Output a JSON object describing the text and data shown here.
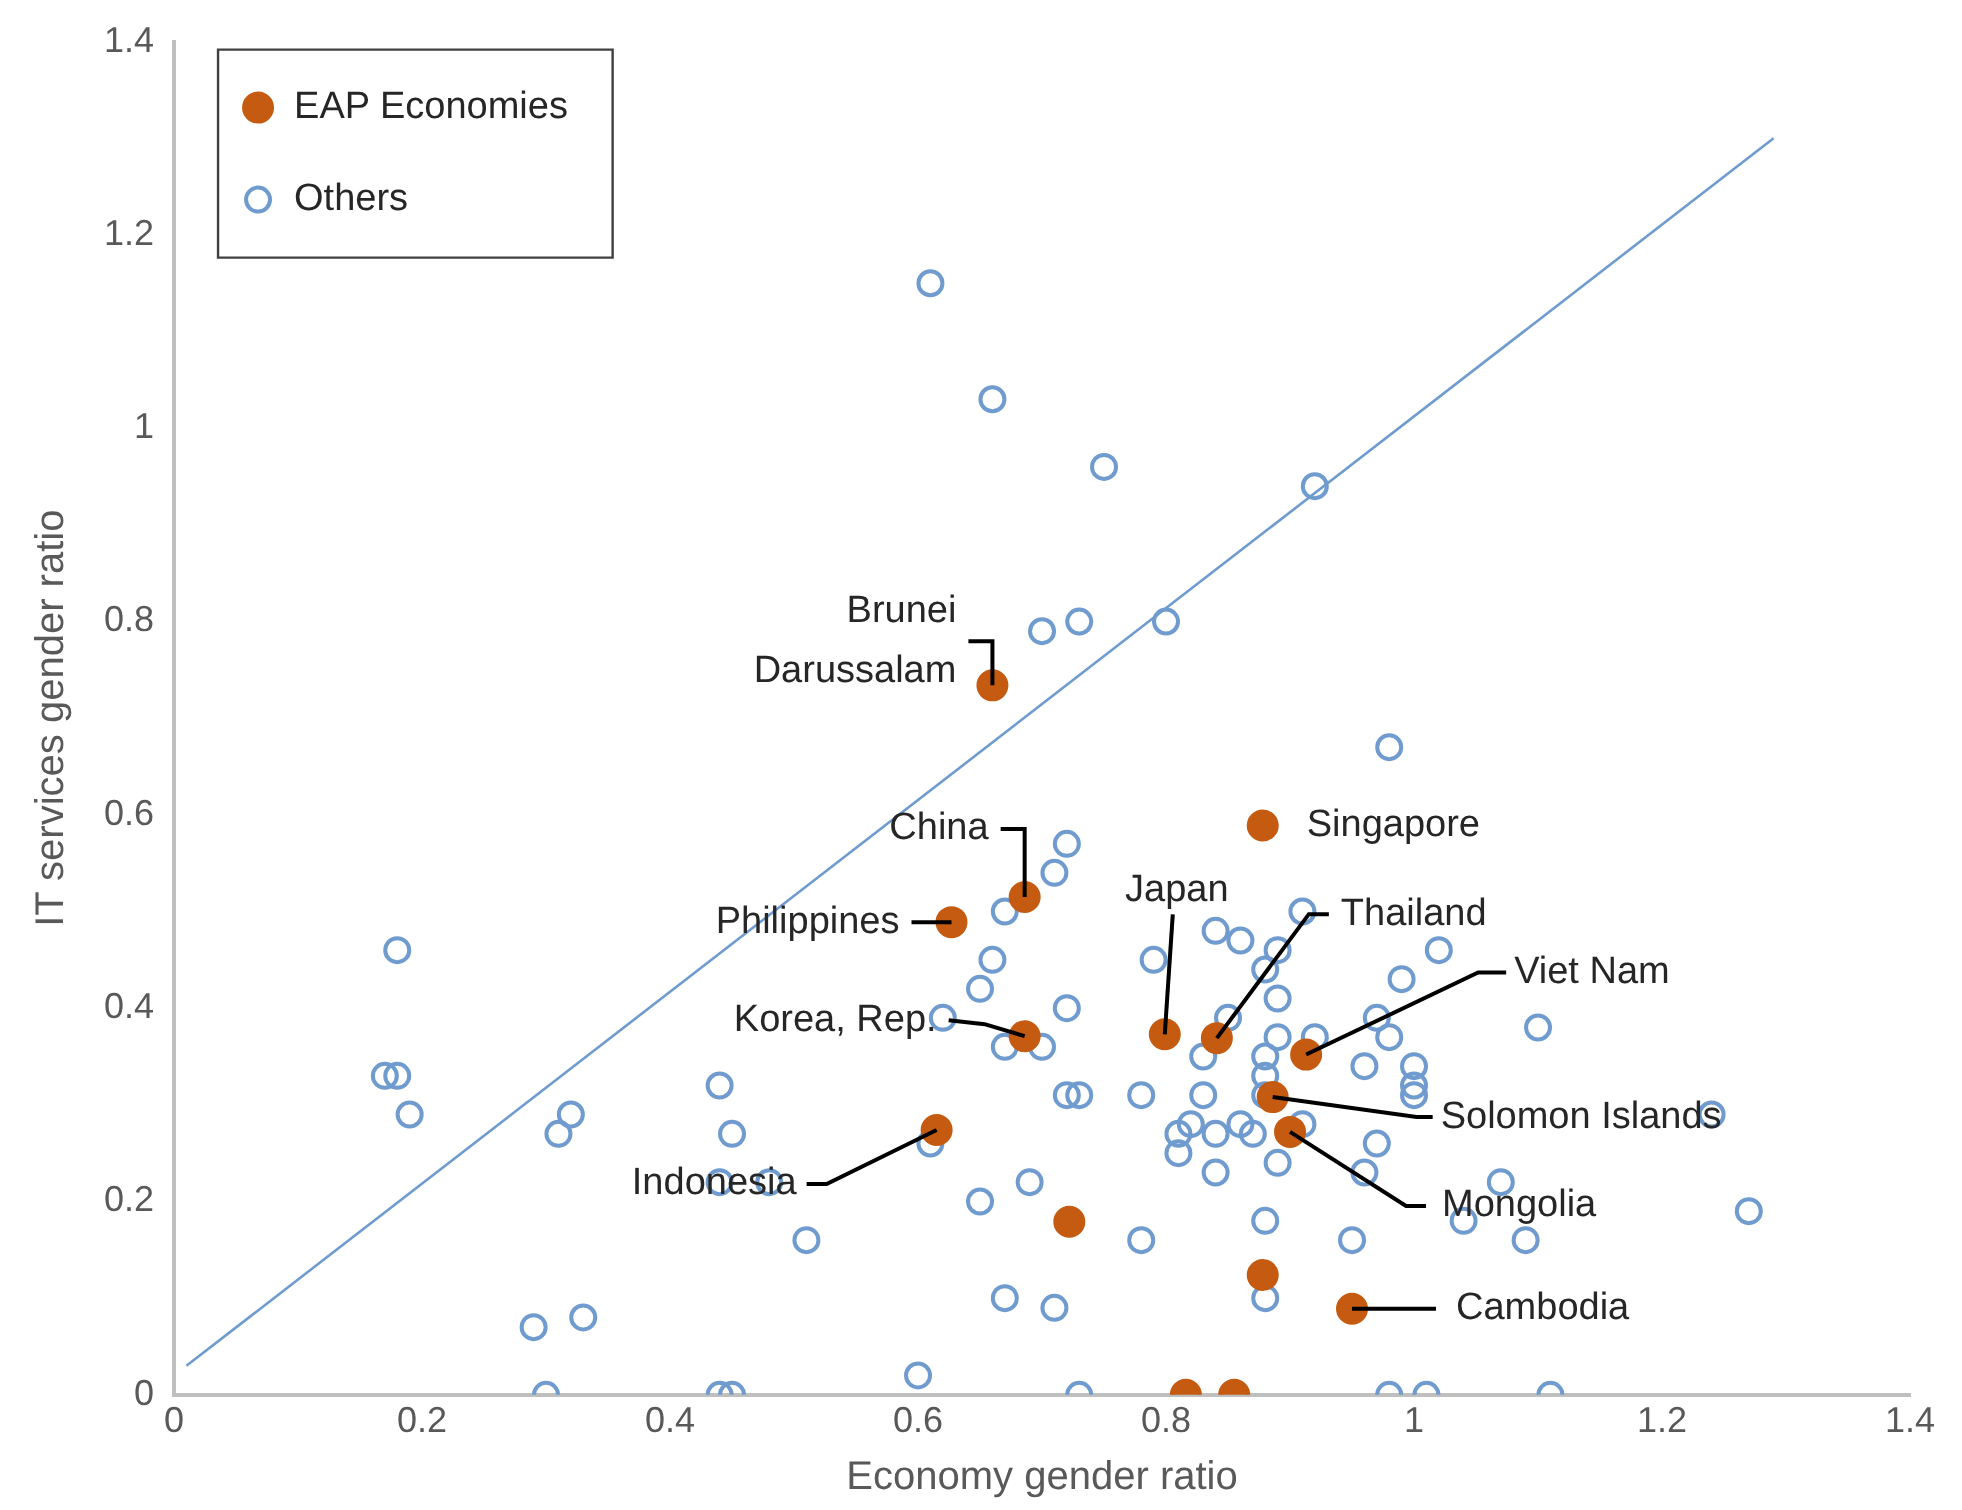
{
  "chart_data": {
    "type": "scatter",
    "xlabel": "Economy gender ratio",
    "ylabel": "IT services gender ratio",
    "xlim": [
      0,
      1.4
    ],
    "xticks": [
      0,
      0.2,
      0.4,
      0.6,
      0.8,
      1,
      1.2,
      1.4
    ],
    "ylim": [
      0,
      1.4
    ],
    "yticks": [
      0,
      0.2,
      0.4,
      0.6,
      0.8,
      1,
      1.2,
      1.4
    ],
    "grid": false,
    "legend": "top left",
    "marker": "circle",
    "series": [
      {
        "name": "EAP Economies",
        "color": "#c55a11",
        "x": [
          0.66,
          0.686,
          0.627,
          0.686,
          0.615,
          0.878,
          0.799,
          0.841,
          0.913,
          0.886,
          0.9,
          0.95,
          0.722,
          0.878,
          0.816,
          0.855
        ],
        "values": [
          0.734,
          0.515,
          0.489,
          0.371,
          0.274,
          0.589,
          0.373,
          0.369,
          0.352,
          0.308,
          0.272,
          0.089,
          0.179,
          0.124,
          0,
          0
        ]
      },
      {
        "name": "Others",
        "color": "#6f9bcf",
        "x": [
          0.61,
          0.66,
          0.75,
          0.92,
          0.7,
          0.73,
          0.8,
          0.98,
          0.18,
          0.17,
          0.18,
          0.19,
          0.31,
          0.32,
          0.33,
          0.29,
          0.3,
          0.44,
          0.45,
          0.44,
          0.45,
          0.44,
          0.48,
          0.51,
          0.6,
          0.72,
          0.71,
          0.67,
          0.66,
          0.65,
          0.72,
          0.62,
          0.67,
          0.7,
          0.72,
          0.73,
          0.61,
          0.78,
          0.65,
          0.69,
          0.78,
          0.67,
          0.71,
          0.73,
          0.79,
          0.84,
          0.86,
          0.91,
          0.89,
          0.88,
          0.89,
          0.85,
          1.02,
          0.99,
          0.97,
          0.98,
          0.89,
          0.88,
          0.83,
          0.92,
          0.96,
          1.0,
          1.0,
          1.0,
          0.88,
          0.83,
          0.88,
          0.81,
          0.82,
          0.84,
          0.86,
          0.87,
          0.81,
          0.84,
          0.89,
          0.91,
          0.97,
          0.96,
          0.88,
          0.95,
          0.88,
          0.98,
          1.01,
          1.1,
          1.24,
          1.27,
          1.07,
          1.09,
          1.04,
          1.11
        ],
        "values": [
          1.15,
          1.03,
          0.96,
          0.94,
          0.79,
          0.8,
          0.8,
          0.67,
          0.46,
          0.33,
          0.33,
          0.29,
          0.27,
          0.29,
          0.08,
          0.07,
          0,
          0.32,
          0.27,
          0,
          0,
          0.22,
          0.22,
          0.16,
          0.02,
          0.57,
          0.54,
          0.5,
          0.45,
          0.42,
          0.4,
          0.39,
          0.36,
          0.36,
          0.31,
          0.31,
          0.26,
          0.31,
          0.2,
          0.22,
          0.16,
          0.1,
          0.09,
          0,
          0.45,
          0.48,
          0.47,
          0.5,
          0.46,
          0.44,
          0.41,
          0.39,
          0.46,
          0.43,
          0.39,
          0.37,
          0.37,
          0.35,
          0.35,
          0.37,
          0.34,
          0.34,
          0.32,
          0.31,
          0.33,
          0.31,
          0.31,
          0.27,
          0.28,
          0.27,
          0.28,
          0.27,
          0.25,
          0.23,
          0.24,
          0.28,
          0.26,
          0.23,
          0.18,
          0.16,
          0.1,
          0,
          0,
          0.38,
          0.29,
          0.19,
          0.22,
          0.16,
          0.18,
          0
        ]
      },
      {
        "type": "line",
        "marker": "none",
        "color": "#6f9bcf",
        "x": [
          0.01,
          1.29
        ],
        "values": [
          0.03,
          1.3
        ]
      }
    ],
    "annotations": [
      {
        "text": "Brunei Darussalam",
        "x": 0.66,
        "y": 0.734
      },
      {
        "text": "China",
        "x": 0.686,
        "y": 0.515
      },
      {
        "text": "Philippines",
        "x": 0.627,
        "y": 0.489
      },
      {
        "text": "Korea, Rep.",
        "x": 0.686,
        "y": 0.371
      },
      {
        "text": "Indonesia",
        "x": 0.615,
        "y": 0.274
      },
      {
        "text": "Singapore",
        "x": 0.878,
        "y": 0.589
      },
      {
        "text": "Japan",
        "x": 0.799,
        "y": 0.373
      },
      {
        "text": "Thailand",
        "x": 0.841,
        "y": 0.369
      },
      {
        "text": "Viet Nam",
        "x": 0.913,
        "y": 0.352
      },
      {
        "text": "Solomon Islands",
        "x": 0.886,
        "y": 0.308
      },
      {
        "text": "Mongolia",
        "x": 0.9,
        "y": 0.272
      },
      {
        "text": "Cambodia",
        "x": 0.95,
        "y": 0.089
      }
    ]
  }
}
